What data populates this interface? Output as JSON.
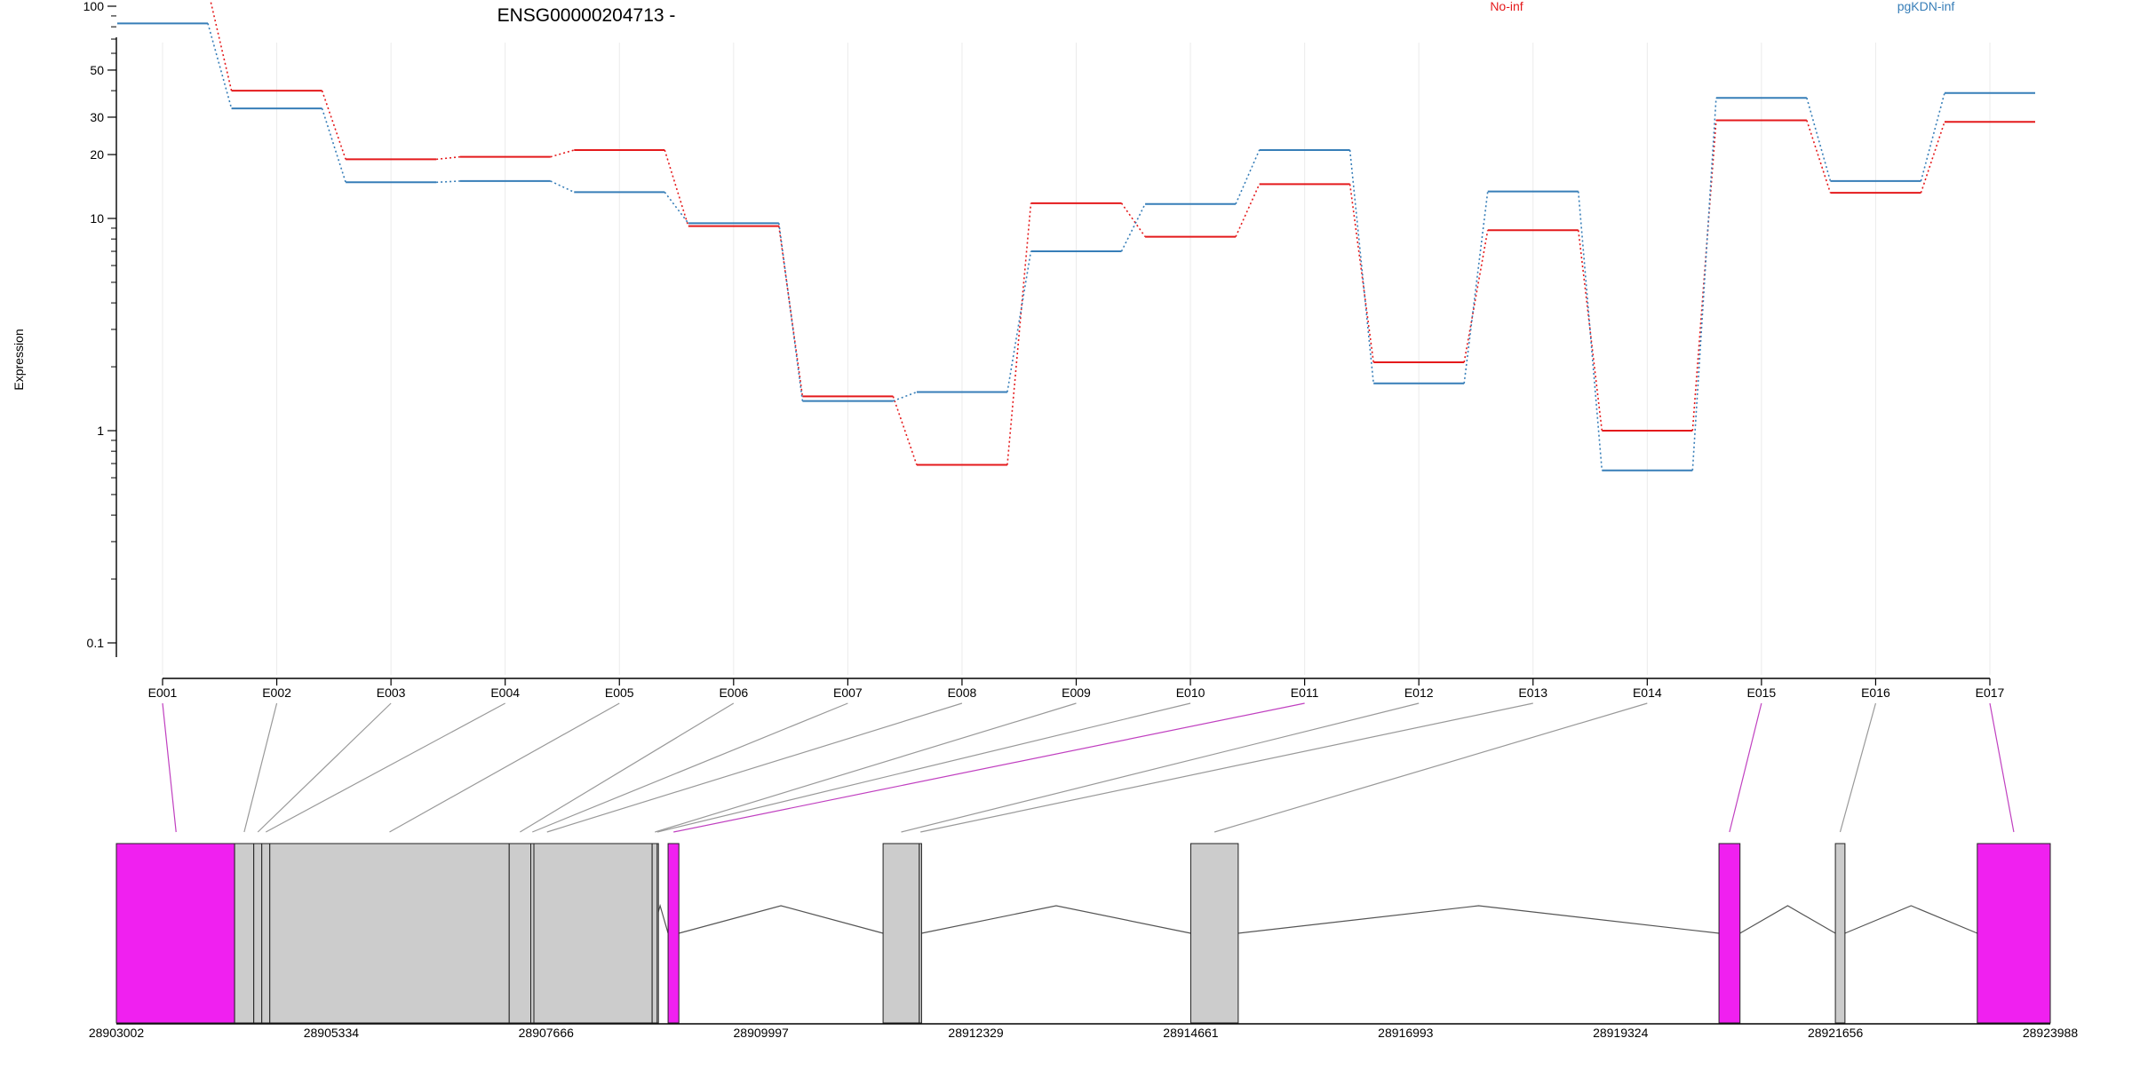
{
  "chart_data": {
    "type": "line",
    "title": "ENSG00000204713 -",
    "ylabel": "Expression",
    "xlabel": "",
    "y_scale": "log",
    "ylim": [
      0.07,
      150
    ],
    "y_ticks": [
      0.1,
      1,
      10,
      20,
      30,
      50,
      100
    ],
    "y_tick_labels": [
      "0.1",
      "1",
      "10",
      "20",
      "30",
      "50",
      "100"
    ],
    "grid": "vertical, at exon centers",
    "legend_position": "top",
    "categories": [
      "E001",
      "E002",
      "E003",
      "E004",
      "E005",
      "E006",
      "E007",
      "E008",
      "E009",
      "E010",
      "E011",
      "E012",
      "E013",
      "E014",
      "E015",
      "E016",
      "E017"
    ],
    "series": [
      {
        "name": "No-inf",
        "color": "#e41a1c",
        "values": [
          120,
          40,
          19,
          19.5,
          21,
          9.2,
          1.45,
          0.69,
          11.8,
          8.2,
          14.5,
          2.1,
          8.8,
          1.0,
          29,
          13.2,
          28.5
        ]
      },
      {
        "name": "pgKDN-inf",
        "color": "#377eb8",
        "values": [
          83,
          33,
          14.8,
          15,
          13.3,
          9.5,
          1.38,
          1.52,
          7.0,
          11.7,
          21,
          1.67,
          13.4,
          0.65,
          37,
          15,
          39
        ]
      }
    ],
    "gene_model": {
      "coordinate_labels": [
        "28903002",
        "28905334",
        "28907666",
        "28909997",
        "28912329",
        "28914661",
        "28916993",
        "28919324",
        "28921656",
        "28923988"
      ],
      "genomic_range": [
        28903002,
        28923988
      ],
      "highlight_color": "#f020f0",
      "exon_color": "#cccccc",
      "exons": [
        {
          "id": "E001",
          "start": 28903002,
          "end": 28904285,
          "highlight": true
        },
        {
          "id": "E002",
          "start": 28904285,
          "end": 28904493,
          "highlight": false
        },
        {
          "id": "E003",
          "start": 28904493,
          "end": 28904580,
          "highlight": false
        },
        {
          "id": "E004",
          "start": 28904580,
          "end": 28904667,
          "highlight": false
        },
        {
          "id": "E005",
          "start": 28904667,
          "end": 28907265,
          "highlight": false
        },
        {
          "id": "E006",
          "start": 28907265,
          "end": 28907499,
          "highlight": false
        },
        {
          "id": "E007",
          "start": 28907499,
          "end": 28907533,
          "highlight": false
        },
        {
          "id": "E008",
          "start": 28907533,
          "end": 28908816,
          "highlight": false
        },
        {
          "id": "E009",
          "start": 28908816,
          "end": 28908875,
          "highlight": false
        },
        {
          "id": "E010",
          "start": 28908870,
          "end": 28908875,
          "highlight": false
        },
        {
          "id": "E011",
          "start": 28908989,
          "end": 28909106,
          "highlight": true
        },
        {
          "id": "E012",
          "start": 28911322,
          "end": 28911715,
          "highlight": false
        },
        {
          "id": "E013",
          "start": 28911715,
          "end": 28911740,
          "highlight": false
        },
        {
          "id": "E014",
          "start": 28914661,
          "end": 28915176,
          "highlight": false
        },
        {
          "id": "E015",
          "start": 28920393,
          "end": 28920621,
          "highlight": true
        },
        {
          "id": "E016",
          "start": 28921656,
          "end": 28921760,
          "highlight": false
        },
        {
          "id": "E017",
          "start": 28923196,
          "end": 28923988,
          "highlight": true
        }
      ],
      "introns": [
        {
          "from": 28908816,
          "to": 28908989
        },
        {
          "from": 28909106,
          "to": 28911322
        },
        {
          "from": 28911740,
          "to": 28914661
        },
        {
          "from": 28915176,
          "to": 28920393
        },
        {
          "from": 28920621,
          "to": 28921656
        },
        {
          "from": 28921760,
          "to": 28923196
        }
      ],
      "connector_targets": [
        28903650,
        28904389,
        28904537,
        28904624,
        28905966,
        28907382,
        28907516,
        28907675,
        28908847,
        28908872,
        28909048,
        28911519,
        28911728,
        28914918,
        28920507,
        28921708,
        28923592
      ]
    }
  }
}
